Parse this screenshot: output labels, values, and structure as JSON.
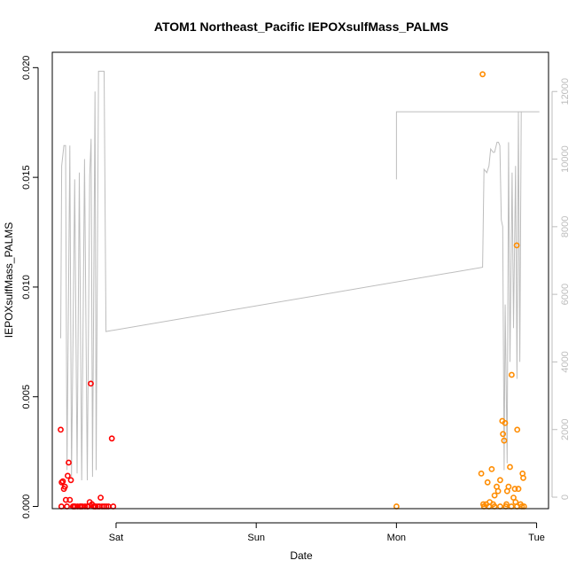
{
  "chart_data": {
    "type": "scatter",
    "title": "ATOM1 Northeast_Pacific IEPOXsulfMass_PALMS",
    "xlabel": "Date",
    "ylabel": "IEPOXsulfMass_PALMS",
    "x_ticks": [
      "Sat",
      "Sun",
      "Mon",
      "Tue"
    ],
    "xlim": [
      -0.455,
      3.085
    ],
    "y_left": {
      "lim": [
        -0.0001,
        0.0207
      ],
      "ticks": [
        0.0,
        0.005,
        0.01,
        0.015,
        0.02
      ],
      "tick_labels": [
        "0.000",
        "0.005",
        "0.010",
        "0.015",
        "0.020"
      ]
    },
    "y_right": {
      "lim": [
        -340,
        13160
      ],
      "ticks": [
        0,
        2000,
        4000,
        6000,
        8000,
        10000,
        12000
      ],
      "tick_labels": [
        "0",
        "2000",
        "4000",
        "6000",
        "8000",
        "10000",
        "12000"
      ],
      "color": "#bdbdbd"
    },
    "series": [
      {
        "color": "#ff0000",
        "axis": "left",
        "marker": "circle-open",
        "points": [
          [
            -0.395,
            0.0035
          ],
          [
            -0.388,
            0.0011
          ],
          [
            -0.38,
            0.00115
          ],
          [
            -0.372,
            0.0008
          ],
          [
            -0.365,
            0.0009
          ],
          [
            -0.358,
            0.0003
          ],
          [
            -0.345,
            0.0014
          ],
          [
            -0.338,
            0.002
          ],
          [
            -0.33,
            0.0003
          ],
          [
            -0.322,
            0.0012
          ],
          [
            -0.308,
            0.0
          ],
          [
            -0.292,
            0.0
          ],
          [
            -0.275,
            0.0
          ],
          [
            -0.258,
            0.0
          ],
          [
            -0.24,
            0.0
          ],
          [
            -0.222,
            0.0
          ],
          [
            -0.205,
            0.0
          ],
          [
            -0.188,
            0.0002
          ],
          [
            -0.18,
            0.0056
          ],
          [
            -0.172,
            0.0001
          ],
          [
            -0.16,
            0.0
          ],
          [
            -0.145,
            0.0
          ],
          [
            -0.13,
            0.0
          ],
          [
            -0.118,
            0.0
          ],
          [
            -0.11,
            0.0004
          ],
          [
            -0.1,
            0.0
          ],
          [
            -0.085,
            0.0
          ],
          [
            -0.07,
            0.0
          ],
          [
            -0.055,
            0.0
          ],
          [
            -0.03,
            0.0031
          ],
          [
            -0.02,
            0.0
          ],
          [
            -0.39,
            0.0
          ],
          [
            -0.35,
            0.0
          ],
          [
            -0.3,
            0.0
          ],
          [
            -0.25,
            0.0
          ],
          [
            -0.2,
            0.0
          ],
          [
            -0.15,
            0.0
          ]
        ]
      },
      {
        "color": "#ff8c00",
        "axis": "left",
        "marker": "circle-open",
        "points": [
          [
            2.0,
            0.0
          ],
          [
            2.615,
            0.0197
          ],
          [
            2.605,
            0.0015
          ],
          [
            2.62,
            0.0001
          ],
          [
            2.64,
            0.0001
          ],
          [
            2.65,
            0.0011
          ],
          [
            2.665,
            0.0002
          ],
          [
            2.68,
            0.0017
          ],
          [
            2.69,
            0.0001
          ],
          [
            2.7,
            0.0005
          ],
          [
            2.715,
            0.0009
          ],
          [
            2.725,
            0.0007
          ],
          [
            2.74,
            0.0012
          ],
          [
            2.755,
            0.0039
          ],
          [
            2.76,
            0.0033
          ],
          [
            2.768,
            0.003
          ],
          [
            2.775,
            0.0038
          ],
          [
            2.785,
            0.0001
          ],
          [
            2.79,
            0.0007
          ],
          [
            2.8,
            0.0009
          ],
          [
            2.81,
            0.0018
          ],
          [
            2.822,
            0.006
          ],
          [
            2.835,
            0.0004
          ],
          [
            2.845,
            0.0008
          ],
          [
            2.85,
            0.0002
          ],
          [
            2.858,
            0.0119
          ],
          [
            2.862,
            0.0035
          ],
          [
            2.87,
            0.0008
          ],
          [
            2.885,
            0.0001
          ],
          [
            2.9,
            0.0015
          ],
          [
            2.905,
            0.0013
          ],
          [
            2.91,
            0.0
          ],
          [
            2.625,
            0.0
          ],
          [
            2.66,
            0.0
          ],
          [
            2.7,
            0.0
          ],
          [
            2.74,
            0.0
          ],
          [
            2.78,
            0.0
          ],
          [
            2.82,
            0.0
          ],
          [
            2.86,
            0.0
          ],
          [
            2.895,
            0.0
          ]
        ]
      },
      {
        "color": "#bdbdbd",
        "axis": "right",
        "marker": "line",
        "points": [
          [
            -0.395,
            4700
          ],
          [
            -0.388,
            9800
          ],
          [
            -0.372,
            10400
          ],
          [
            -0.36,
            10400
          ],
          [
            -0.35,
            800
          ],
          [
            -0.33,
            10400
          ],
          [
            -0.318,
            600
          ],
          [
            -0.295,
            9400
          ],
          [
            -0.278,
            700
          ],
          [
            -0.262,
            9600
          ],
          [
            -0.245,
            500
          ],
          [
            -0.225,
            10000
          ],
          [
            -0.205,
            500
          ],
          [
            -0.188,
            9500
          ],
          [
            -0.178,
            10600
          ],
          [
            -0.168,
            600
          ],
          [
            -0.15,
            12000
          ],
          [
            -0.142,
            800
          ],
          [
            -0.125,
            12600
          ],
          [
            -0.085,
            12600
          ],
          [
            -0.072,
            4900
          ],
          [
            2.615,
            6800
          ],
          [
            2.625,
            9700
          ],
          [
            2.645,
            9600
          ],
          [
            2.66,
            9800
          ],
          [
            2.672,
            10300
          ],
          [
            2.69,
            10200
          ],
          [
            2.7,
            10200
          ],
          [
            2.718,
            10500
          ],
          [
            2.728,
            10500
          ],
          [
            2.738,
            10400
          ],
          [
            2.748,
            8200
          ],
          [
            2.758,
            8000
          ],
          [
            2.768,
            800
          ],
          [
            2.776,
            5700
          ],
          [
            2.79,
            1000
          ],
          [
            2.8,
            10500
          ],
          [
            2.81,
            4000
          ],
          [
            2.825,
            9600
          ],
          [
            2.835,
            5000
          ],
          [
            2.85,
            9800
          ],
          [
            2.86,
            3500
          ],
          [
            2.87,
            11400
          ],
          [
            2.88,
            4000
          ],
          [
            2.89,
            11400
          ]
        ]
      },
      {
        "color": "#bdbdbd",
        "axis": "right",
        "marker": "line",
        "points": [
          [
            2.0,
            9400
          ],
          [
            2.0,
            11400
          ],
          [
            3.02,
            11400
          ]
        ]
      }
    ]
  }
}
